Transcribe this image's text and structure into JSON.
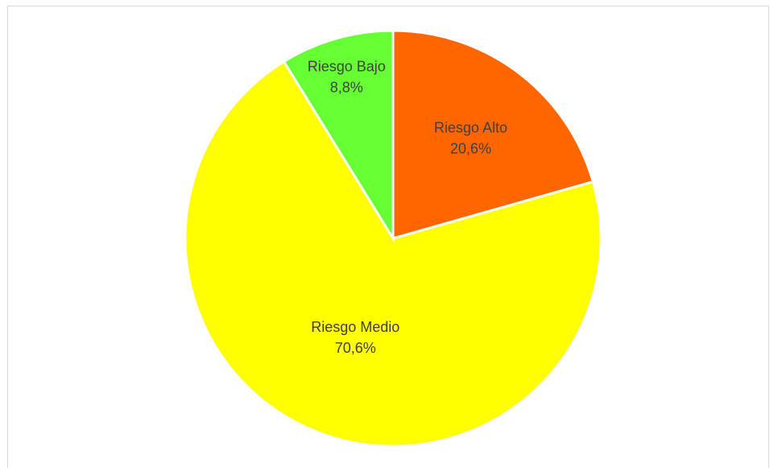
{
  "chart_data": {
    "type": "pie",
    "title": "",
    "slices": [
      {
        "label": "Riesgo Alto",
        "value": 20.6,
        "value_label": "20,6%",
        "color": "#ff6600"
      },
      {
        "label": "Riesgo Medio",
        "value": 70.6,
        "value_label": "70,6%",
        "color": "#ffff00"
      },
      {
        "label": "Riesgo Bajo",
        "value": 8.8,
        "value_label": "8,8%",
        "color": "#66ff33"
      }
    ],
    "start_angle": "12 o'clock, clockwise",
    "legend": "none",
    "data_labels": "category name and percentage inside slices"
  }
}
